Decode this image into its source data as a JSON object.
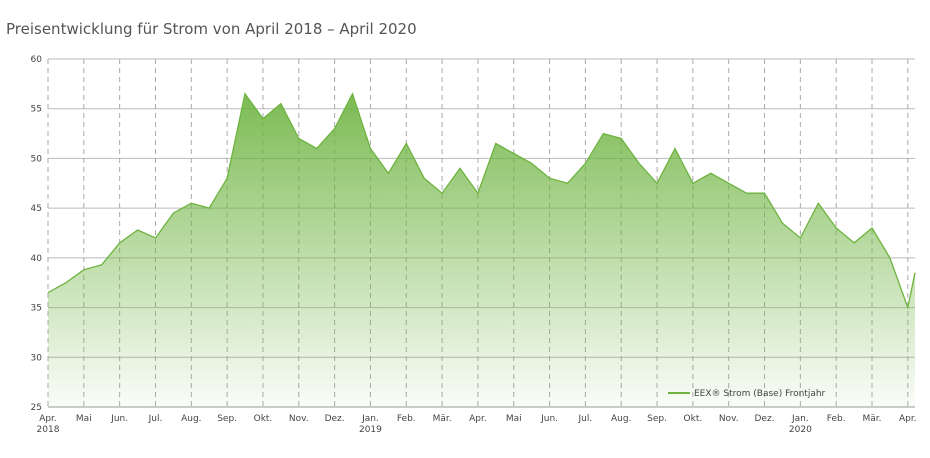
{
  "chart_data": {
    "type": "area",
    "title": "Preisentwicklung für Strom von April 2018 – April 2020",
    "x": [
      0,
      0.5,
      1,
      1.5,
      2,
      2.5,
      3,
      3.5,
      4,
      4.5,
      5,
      5.5,
      6,
      6.5,
      7,
      7.5,
      8,
      8.5,
      9,
      9.5,
      10,
      10.5,
      11,
      11.5,
      12,
      12.5,
      13,
      13.5,
      14,
      14.5,
      15,
      15.5,
      16,
      16.5,
      17,
      17.5,
      18,
      18.5,
      19,
      19.5,
      20,
      20.5,
      21,
      21.5,
      22,
      22.5,
      23,
      23.5,
      24,
      24.2
    ],
    "series": [
      {
        "name": "EEX® Strom (Base) Frontjahr",
        "color": "#6db33f",
        "values": [
          36.5,
          37.5,
          38.8,
          39.3,
          41.5,
          42.8,
          42,
          44.5,
          45.5,
          45,
          48,
          56.5,
          54,
          55.5,
          52,
          51,
          53,
          56.5,
          51,
          48.5,
          51.5,
          48,
          46.5,
          49,
          46.5,
          51.5,
          50.5,
          49.5,
          48,
          47.5,
          49.5,
          52.5,
          52,
          49.5,
          47.5,
          51,
          47.5,
          48.5,
          47.5,
          46.5,
          46.5,
          43.5,
          42,
          45.5,
          43,
          41.5,
          43,
          40,
          35,
          38.5
        ]
      }
    ],
    "xlim": [
      0,
      24.2
    ],
    "xticks": [
      {
        "value": 0,
        "label": "Apr.\n2018"
      },
      {
        "value": 1,
        "label": "Mai"
      },
      {
        "value": 2,
        "label": "Jun."
      },
      {
        "value": 3,
        "label": "Jul."
      },
      {
        "value": 4,
        "label": "Aug."
      },
      {
        "value": 5,
        "label": "Sep."
      },
      {
        "value": 6,
        "label": "Okt."
      },
      {
        "value": 7,
        "label": "Nov."
      },
      {
        "value": 8,
        "label": "Dez."
      },
      {
        "value": 9,
        "label": "Jan.\n2019"
      },
      {
        "value": 10,
        "label": "Feb."
      },
      {
        "value": 11,
        "label": "Mär."
      },
      {
        "value": 12,
        "label": "Apr."
      },
      {
        "value": 13,
        "label": "Mai"
      },
      {
        "value": 14,
        "label": "Jun."
      },
      {
        "value": 15,
        "label": "Jul."
      },
      {
        "value": 16,
        "label": "Aug."
      },
      {
        "value": 17,
        "label": "Sep."
      },
      {
        "value": 18,
        "label": "Okt."
      },
      {
        "value": 19,
        "label": "Nov."
      },
      {
        "value": 20,
        "label": "Dez."
      },
      {
        "value": 21,
        "label": "Jan.\n2020"
      },
      {
        "value": 22,
        "label": "Feb."
      },
      {
        "value": 23,
        "label": "Mär."
      },
      {
        "value": 24,
        "label": "Apr."
      }
    ],
    "ylim": [
      25,
      60
    ],
    "yticks": [
      25,
      30,
      35,
      40,
      45,
      50,
      55,
      60
    ],
    "grid": true
  }
}
